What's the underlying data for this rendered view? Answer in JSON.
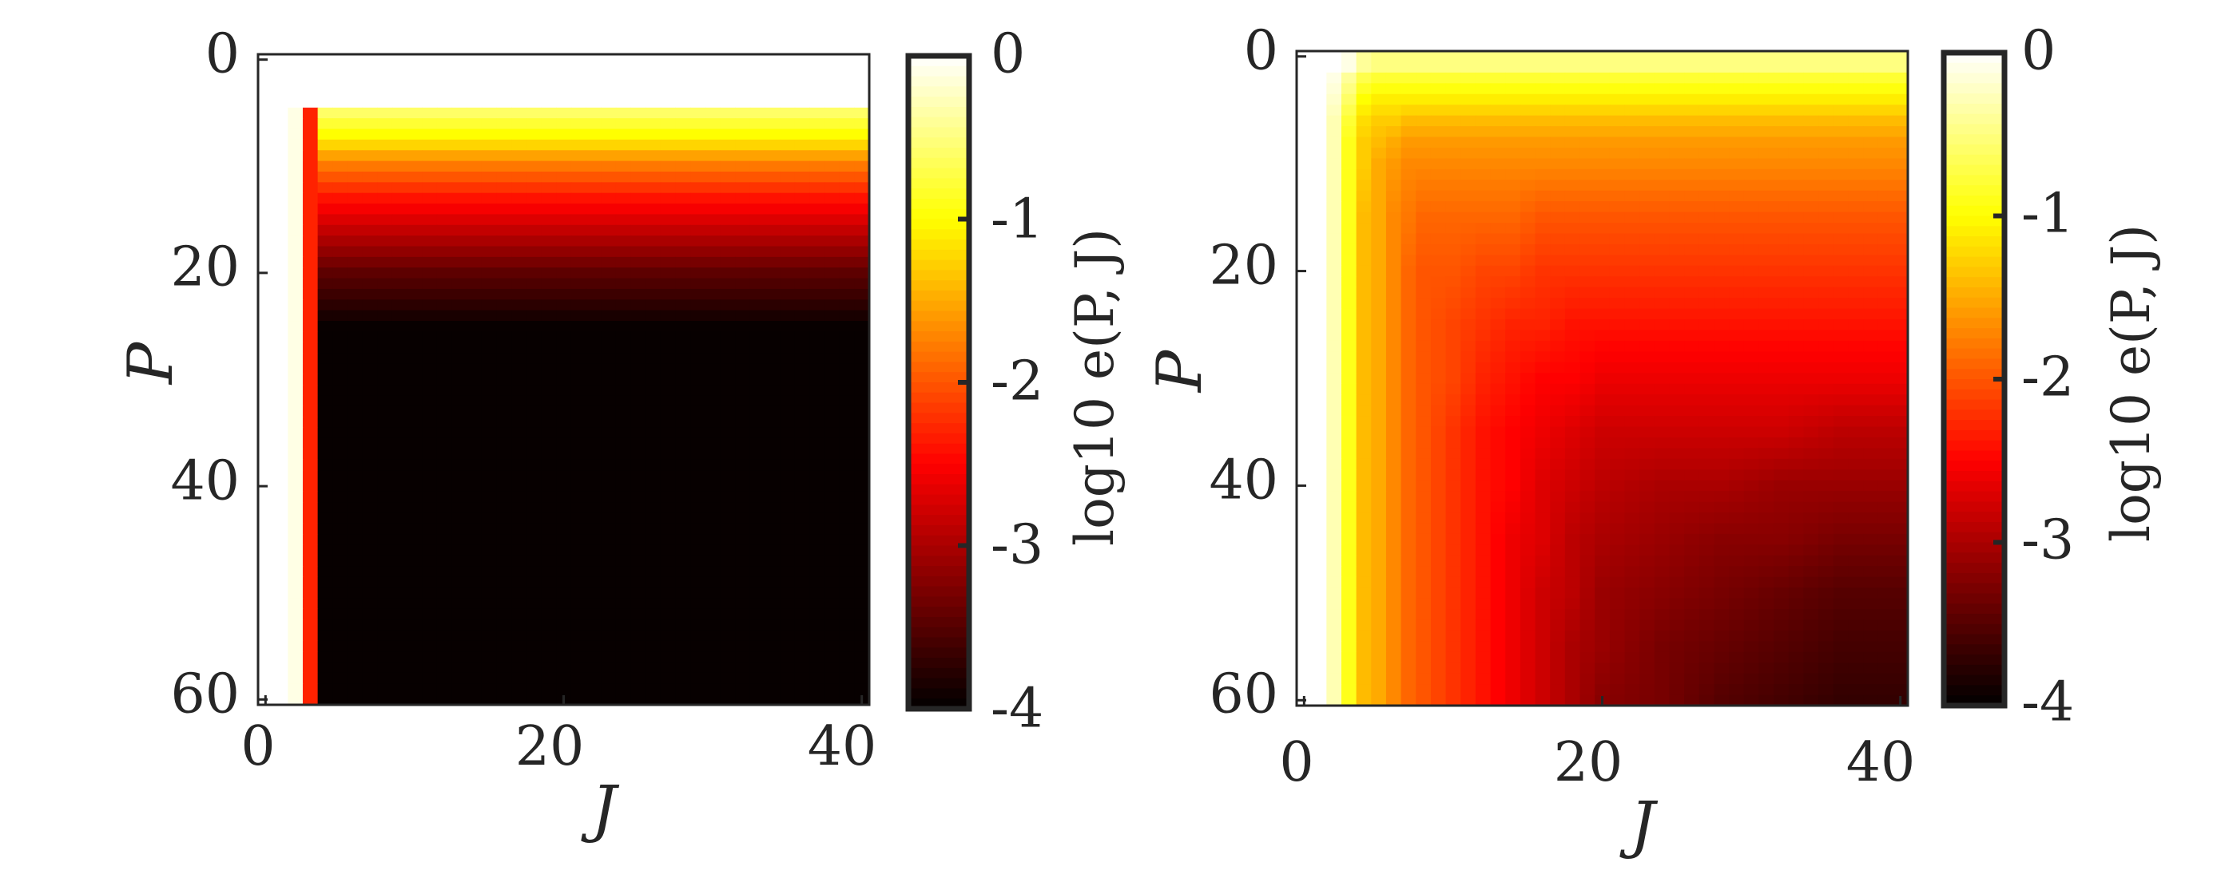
{
  "chart_data": [
    {
      "type": "heatmap",
      "title": "",
      "xlabel": "J",
      "ylabel": "P",
      "xlim": [
        0,
        41
      ],
      "ylim": [
        0,
        61
      ],
      "y_reversed": true,
      "x_ticks": [
        "0",
        "20",
        "40"
      ],
      "y_ticks": [
        "0",
        "20",
        "40",
        "60"
      ],
      "colormap": "hot",
      "colorbar": {
        "label": "log10 e(P, J)",
        "range": [
          -4,
          0
        ],
        "ticks": [
          "0",
          "-1",
          "-2",
          "-3",
          "-4"
        ]
      },
      "region_values": [
        {
          "J_range": [
            0,
            2
          ],
          "P_range": [
            0,
            61
          ],
          "log10_error": 0
        },
        {
          "J_range": [
            2,
            3
          ],
          "P_range": [
            0,
            5
          ],
          "log10_error": 0
        },
        {
          "J_range": [
            2,
            3
          ],
          "P_range": [
            5,
            61
          ],
          "log10_error": -0.1
        },
        {
          "J_range": [
            3,
            4
          ],
          "P_range": [
            0,
            5
          ],
          "log10_error": 0
        },
        {
          "J_range": [
            3,
            4
          ],
          "P_range": [
            5,
            61
          ],
          "log10_error": -2.3
        },
        {
          "J_range": [
            4,
            41
          ],
          "P_range": [
            0,
            5
          ],
          "log10_error": 0
        }
      ],
      "row_profile_J_ge_4": {
        "P": [
          5,
          6,
          7,
          8,
          9,
          10,
          11,
          12,
          13,
          14,
          15,
          16,
          17,
          18,
          19,
          20,
          21,
          22,
          23,
          24,
          25,
          26
        ],
        "log10_error": [
          -0.6,
          -0.8,
          -1.0,
          -1.25,
          -1.55,
          -1.8,
          -2.0,
          -2.2,
          -2.4,
          -2.55,
          -2.7,
          -2.85,
          -3.0,
          -3.15,
          -3.3,
          -3.45,
          -3.55,
          -3.65,
          -3.75,
          -3.85,
          -3.95,
          -4.0
        ],
        "note": "P >= 26 : -4.0"
      }
    },
    {
      "type": "heatmap",
      "title": "",
      "xlabel": "J",
      "ylabel": "P",
      "xlim": [
        0,
        41
      ],
      "ylim": [
        0,
        61
      ],
      "y_reversed": true,
      "x_ticks": [
        "0",
        "20",
        "40"
      ],
      "y_ticks": [
        "0",
        "20",
        "40",
        "60"
      ],
      "colormap": "hot",
      "colorbar": {
        "label": "log10 e(P, J)",
        "range": [
          -4,
          0
        ],
        "ticks": [
          "0",
          "-1",
          "-2",
          "-3",
          "-4"
        ]
      },
      "approximate_values": {
        "J": [
          1,
          2,
          3,
          4,
          5,
          6,
          7,
          8,
          10,
          12,
          14,
          16,
          18,
          20,
          24,
          28,
          32,
          36,
          40
        ],
        "P": [
          1,
          2,
          4,
          6,
          8,
          10,
          15,
          20,
          25,
          30,
          35,
          40,
          45,
          50,
          55,
          60
        ],
        "log10_error": [
          [
            0,
            0,
            -0.1,
            -0.4,
            -0.5,
            -0.5,
            -0.5,
            -0.5,
            -0.5,
            -0.5,
            -0.5,
            -0.5,
            -0.5,
            -0.5,
            -0.5,
            -0.5,
            -0.5,
            -0.5,
            -0.5
          ],
          [
            0,
            -0.1,
            -0.4,
            -0.7,
            -0.8,
            -0.8,
            -0.8,
            -0.8,
            -0.8,
            -0.8,
            -0.8,
            -0.8,
            -0.8,
            -0.8,
            -0.8,
            -0.8,
            -0.8,
            -0.8,
            -0.8
          ],
          [
            0,
            -0.2,
            -0.6,
            -1.0,
            -1.1,
            -1.1,
            -1.1,
            -1.1,
            -1.1,
            -1.1,
            -1.1,
            -1.1,
            -1.1,
            -1.1,
            -1.1,
            -1.1,
            -1.1,
            -1.1,
            -1.1
          ],
          [
            0,
            -0.3,
            -0.8,
            -1.2,
            -1.3,
            -1.3,
            -1.4,
            -1.4,
            -1.4,
            -1.4,
            -1.4,
            -1.4,
            -1.4,
            -1.4,
            -1.4,
            -1.4,
            -1.4,
            -1.4,
            -1.4
          ],
          [
            0,
            -0.3,
            -0.9,
            -1.3,
            -1.4,
            -1.5,
            -1.6,
            -1.6,
            -1.6,
            -1.6,
            -1.6,
            -1.6,
            -1.6,
            -1.6,
            -1.6,
            -1.6,
            -1.6,
            -1.6,
            -1.6
          ],
          [
            0,
            -0.3,
            -0.9,
            -1.3,
            -1.5,
            -1.6,
            -1.7,
            -1.7,
            -1.7,
            -1.7,
            -1.7,
            -1.7,
            -1.7,
            -1.7,
            -1.7,
            -1.7,
            -1.7,
            -1.7,
            -1.7
          ],
          [
            0,
            -0.3,
            -0.9,
            -1.4,
            -1.5,
            -1.7,
            -1.8,
            -1.9,
            -1.9,
            -1.9,
            -1.9,
            -2.0,
            -2.0,
            -2.0,
            -2.0,
            -2.0,
            -2.0,
            -2.0,
            -2.0
          ],
          [
            0,
            -0.3,
            -0.9,
            -1.4,
            -1.5,
            -1.7,
            -1.9,
            -2.0,
            -2.0,
            -2.1,
            -2.1,
            -2.2,
            -2.2,
            -2.2,
            -2.2,
            -2.2,
            -2.2,
            -2.2,
            -2.2
          ],
          [
            0,
            -0.3,
            -0.9,
            -1.4,
            -1.5,
            -1.7,
            -1.9,
            -2.0,
            -2.1,
            -2.2,
            -2.3,
            -2.3,
            -2.4,
            -2.4,
            -2.4,
            -2.4,
            -2.4,
            -2.4,
            -2.4
          ],
          [
            0,
            -0.3,
            -0.9,
            -1.4,
            -1.5,
            -1.7,
            -1.9,
            -2.0,
            -2.1,
            -2.3,
            -2.4,
            -2.5,
            -2.5,
            -2.6,
            -2.6,
            -2.6,
            -2.6,
            -2.6,
            -2.6
          ],
          [
            0,
            -0.3,
            -0.9,
            -1.4,
            -1.5,
            -1.7,
            -1.9,
            -2.0,
            -2.2,
            -2.4,
            -2.5,
            -2.6,
            -2.7,
            -2.8,
            -2.8,
            -2.8,
            -2.8,
            -2.9,
            -2.9
          ],
          [
            0,
            -0.3,
            -0.9,
            -1.4,
            -1.5,
            -1.7,
            -1.9,
            -2.0,
            -2.2,
            -2.4,
            -2.5,
            -2.7,
            -2.8,
            -2.9,
            -3.0,
            -3.0,
            -3.1,
            -3.1,
            -3.1
          ],
          [
            0,
            -0.3,
            -0.9,
            -1.4,
            -1.5,
            -1.7,
            -1.9,
            -2.0,
            -2.2,
            -2.4,
            -2.6,
            -2.7,
            -2.9,
            -3.0,
            -3.1,
            -3.2,
            -3.2,
            -3.3,
            -3.3
          ],
          [
            0,
            -0.3,
            -0.9,
            -1.4,
            -1.5,
            -1.7,
            -1.9,
            -2.0,
            -2.2,
            -2.4,
            -2.6,
            -2.8,
            -2.9,
            -3.1,
            -3.2,
            -3.3,
            -3.4,
            -3.5,
            -3.5
          ],
          [
            0,
            -0.3,
            -0.9,
            -1.4,
            -1.5,
            -1.7,
            -1.9,
            -2.0,
            -2.2,
            -2.4,
            -2.6,
            -2.8,
            -3.0,
            -3.1,
            -3.3,
            -3.4,
            -3.5,
            -3.6,
            -3.6
          ],
          [
            0,
            -0.3,
            -0.9,
            -1.4,
            -1.5,
            -1.7,
            -1.9,
            -2.0,
            -2.2,
            -2.4,
            -2.6,
            -2.8,
            -3.0,
            -3.2,
            -3.3,
            -3.5,
            -3.6,
            -3.7,
            -3.7
          ]
        ]
      }
    }
  ]
}
